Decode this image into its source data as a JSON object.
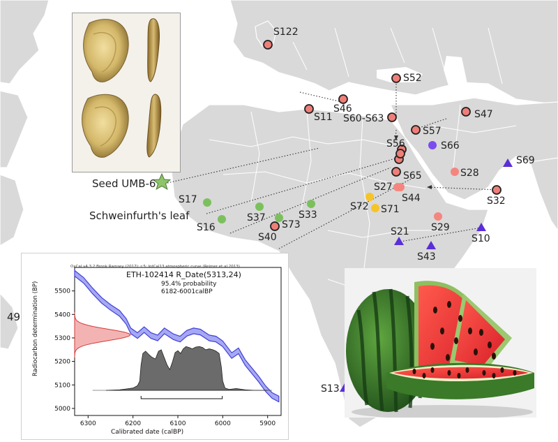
{
  "map": {
    "seed_label": "Seed UMB-6",
    "leaf_label": "Schweinfurth's leaf",
    "edge_left_label": "49",
    "sites": [
      {
        "label": "S122",
        "color": "#ee7f78",
        "shape": "circle-ring"
      },
      {
        "label": "S52",
        "color": "#ee7f78",
        "shape": "circle-ring"
      },
      {
        "label": "S46",
        "color": "#ee7f78",
        "shape": "circle-ring"
      },
      {
        "label": "S11",
        "color": "#ee7f78",
        "shape": "circle-ring"
      },
      {
        "label": "S60-S63",
        "color": "#ee7f78",
        "shape": "circle-ring"
      },
      {
        "label": "S47",
        "color": "#ee7f78",
        "shape": "circle-ring"
      },
      {
        "label": "S57",
        "color": "#ee7f78",
        "shape": "circle-ring"
      },
      {
        "label": "S56",
        "color": "#ee7f78",
        "shape": "circle-ring"
      },
      {
        "label": "S65",
        "color": "#ee7f78",
        "shape": "circle-ring"
      },
      {
        "label": "S66",
        "color": "#7b4cf0",
        "shape": "circle"
      },
      {
        "label": "S28",
        "color": "#f4867f",
        "shape": "circle"
      },
      {
        "label": "S69",
        "color": "#5a2ed8",
        "shape": "triangle"
      },
      {
        "label": "S27",
        "color": "#f4867f",
        "shape": "circle"
      },
      {
        "label": "S44",
        "color": "#f4867f",
        "shape": "circle"
      },
      {
        "label": "S32",
        "color": "#ee7f78",
        "shape": "circle-ring"
      },
      {
        "label": "S72",
        "color": "#f6c428",
        "shape": "circle"
      },
      {
        "label": "S71",
        "color": "#f6c428",
        "shape": "circle"
      },
      {
        "label": "S17",
        "color": "#7cc05e",
        "shape": "circle"
      },
      {
        "label": "S16",
        "color": "#7cc05e",
        "shape": "circle"
      },
      {
        "label": "S37",
        "color": "#7cc05e",
        "shape": "circle"
      },
      {
        "label": "S33",
        "color": "#7cc05e",
        "shape": "circle"
      },
      {
        "label": "S73",
        "color": "#7cc05e",
        "shape": "circle"
      },
      {
        "label": "S40",
        "color": "#ee7f78",
        "shape": "circle-ring"
      },
      {
        "label": "S29",
        "color": "#f4867f",
        "shape": "circle"
      },
      {
        "label": "S21",
        "color": "#5a2ed8",
        "shape": "triangle"
      },
      {
        "label": "S10",
        "color": "#5a2ed8",
        "shape": "triangle"
      },
      {
        "label": "S43",
        "color": "#5a2ed8",
        "shape": "triangle"
      },
      {
        "label": "S13",
        "color": "#5a2ed8",
        "shape": "triangle"
      }
    ],
    "seed_marker_color": "#8fc46a",
    "land_color": "#d9d9d9",
    "border_color": "#ffffff"
  },
  "chart_data": {
    "type": "line",
    "header": "OxCal v4.3.2 Bronk Ramsey (2017); r:5; IntCal13 atmospheric curve (Reimer et al 2013)",
    "title": "ETH-102414 R_Date(5313,24)",
    "probability": "95.4% probability",
    "range_text": "6182-6001calBP",
    "xlabel": "Calibrated date (calBP)",
    "ylabel": "Radiocarbon determination (BP)",
    "xlim": [
      6330,
      5870
    ],
    "ylim": [
      4970,
      5600
    ],
    "x_ticks": [
      6300,
      6200,
      6100,
      6000,
      5900
    ],
    "y_ticks": [
      5000,
      5100,
      5200,
      5300,
      5400,
      5500
    ],
    "calibration_curve": {
      "x": [
        6330,
        6310,
        6290,
        6270,
        6250,
        6230,
        6215,
        6205,
        6190,
        6175,
        6160,
        6145,
        6130,
        6110,
        6095,
        6080,
        6065,
        6050,
        6030,
        6015,
        6000,
        5980,
        5965,
        5950,
        5935,
        5920,
        5905,
        5890,
        5875
      ],
      "y": [
        5575,
        5545,
        5500,
        5460,
        5430,
        5405,
        5370,
        5330,
        5310,
        5335,
        5310,
        5300,
        5330,
        5305,
        5295,
        5320,
        5330,
        5325,
        5300,
        5295,
        5275,
        5225,
        5245,
        5195,
        5160,
        5125,
        5085,
        5055,
        5040
      ],
      "band": 12
    },
    "radiocarbon_date": {
      "mean": 5313,
      "sigma": 24
    },
    "posterior": {
      "x": [
        6260,
        6230,
        6215,
        6200,
        6190,
        6185,
        6182,
        6178,
        6172,
        6165,
        6158,
        6150,
        6143,
        6137,
        6130,
        6124,
        6118,
        6112,
        6106,
        6100,
        6094,
        6088,
        6082,
        6075,
        6068,
        6060,
        6052,
        6045,
        6038,
        6030,
        6022,
        6015,
        6008,
        6003,
        6000,
        5995,
        5985,
        5970,
        5950,
        5930,
        5900
      ],
      "density": [
        0.0,
        0.01,
        0.03,
        0.05,
        0.1,
        0.2,
        0.55,
        0.8,
        0.85,
        0.78,
        0.72,
        0.68,
        0.85,
        0.88,
        0.7,
        0.55,
        0.45,
        0.62,
        0.82,
        0.86,
        0.8,
        0.9,
        0.95,
        0.93,
        0.9,
        0.94,
        0.95,
        0.93,
        0.88,
        0.9,
        0.88,
        0.85,
        0.8,
        0.5,
        0.2,
        0.05,
        0.02,
        0.04,
        0.01,
        0.0,
        0.0
      ]
    },
    "range_bracket": [
      6182,
      6001
    ]
  }
}
